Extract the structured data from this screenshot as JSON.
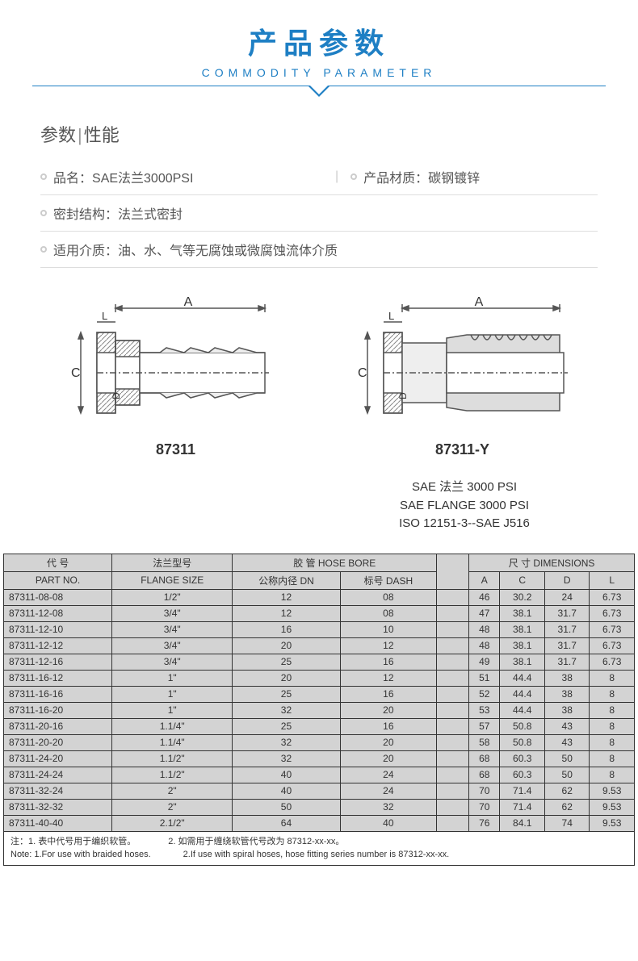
{
  "header": {
    "title_cn": "产品参数",
    "title_en": "COMMODITY PARAMETER",
    "accent_color": "#1e7fc4",
    "line_color": "#1e7fc4"
  },
  "section_title": {
    "left": "参数",
    "right": "性能"
  },
  "params": {
    "row1": {
      "label1": "品名：",
      "value1": "SAE法兰3000PSI",
      "label2": "产品材质：",
      "value2": "碳钢镀锌"
    },
    "row2": {
      "label": "密封结构：",
      "value": "法兰式密封"
    },
    "row3": {
      "label": "适用介质：",
      "value": " 油、水、气等无腐蚀或微腐蚀流体介质"
    }
  },
  "diagrams": {
    "dim_labels": {
      "A": "A",
      "L": "L",
      "C": "C",
      "D": "D"
    },
    "left_label": "87311",
    "right_label": "87311-Y",
    "stroke": "#555",
    "hatch": "#888"
  },
  "spec_text": {
    "line1": "SAE 法兰 3000 PSI",
    "line2": "SAE FLANGE 3000 PSI",
    "line3": "ISO 12151-3--SAE J516"
  },
  "table": {
    "header_bg": "#d3d3d3",
    "border_color": "#333",
    "headers_top": {
      "part_cn": "代 号",
      "flange_cn": "法兰型号",
      "hose_cn": "胶 管",
      "hose_en": "HOSE BORE",
      "dim_cn": "尺 寸",
      "dim_en": "DIMENSIONS"
    },
    "headers_sub": {
      "part_en": "PART NO.",
      "flange_en": "FLANGE  SIZE",
      "dn_cn": "公称内径",
      "dn_en": "DN",
      "dash_cn": "标号",
      "dash_en": "DASH",
      "A": "A",
      "C": "C",
      "D": "D",
      "L": "L"
    },
    "rows": [
      {
        "pn": "87311-08-08",
        "fs": "1/2\"",
        "dn": "12",
        "dash": "08",
        "a": "46",
        "c": "30.2",
        "d": "24",
        "l": "6.73"
      },
      {
        "pn": "87311-12-08",
        "fs": "3/4\"",
        "dn": "12",
        "dash": "08",
        "a": "47",
        "c": "38.1",
        "d": "31.7",
        "l": "6.73"
      },
      {
        "pn": "87311-12-10",
        "fs": "3/4\"",
        "dn": "16",
        "dash": "10",
        "a": "48",
        "c": "38.1",
        "d": "31.7",
        "l": "6.73"
      },
      {
        "pn": "87311-12-12",
        "fs": "3/4\"",
        "dn": "20",
        "dash": "12",
        "a": "48",
        "c": "38.1",
        "d": "31.7",
        "l": "6.73"
      },
      {
        "pn": "87311-12-16",
        "fs": "3/4\"",
        "dn": "25",
        "dash": "16",
        "a": "49",
        "c": "38.1",
        "d": "31.7",
        "l": "6.73"
      },
      {
        "pn": "87311-16-12",
        "fs": "1\"",
        "dn": "20",
        "dash": "12",
        "a": "51",
        "c": "44.4",
        "d": "38",
        "l": "8"
      },
      {
        "pn": "87311-16-16",
        "fs": "1\"",
        "dn": "25",
        "dash": "16",
        "a": "52",
        "c": "44.4",
        "d": "38",
        "l": "8"
      },
      {
        "pn": "87311-16-20",
        "fs": "1\"",
        "dn": "32",
        "dash": "20",
        "a": "53",
        "c": "44.4",
        "d": "38",
        "l": "8"
      },
      {
        "pn": "87311-20-16",
        "fs": "1.1/4\"",
        "dn": "25",
        "dash": "16",
        "a": "57",
        "c": "50.8",
        "d": "43",
        "l": "8"
      },
      {
        "pn": "87311-20-20",
        "fs": "1.1/4\"",
        "dn": "32",
        "dash": "20",
        "a": "58",
        "c": "50.8",
        "d": "43",
        "l": "8"
      },
      {
        "pn": "87311-24-20",
        "fs": "1.1/2\"",
        "dn": "32",
        "dash": "20",
        "a": "68",
        "c": "60.3",
        "d": "50",
        "l": "8"
      },
      {
        "pn": "87311-24-24",
        "fs": "1.1/2\"",
        "dn": "40",
        "dash": "24",
        "a": "68",
        "c": "60.3",
        "d": "50",
        "l": "8"
      },
      {
        "pn": "87311-32-24",
        "fs": "2\"",
        "dn": "40",
        "dash": "24",
        "a": "70",
        "c": "71.4",
        "d": "62",
        "l": "9.53"
      },
      {
        "pn": "87311-32-32",
        "fs": "2\"",
        "dn": "50",
        "dash": "32",
        "a": "70",
        "c": "71.4",
        "d": "62",
        "l": "9.53"
      },
      {
        "pn": "87311-40-40",
        "fs": "2.1/2\"",
        "dn": "64",
        "dash": "40",
        "a": "76",
        "c": "84.1",
        "d": "74",
        "l": "9.53"
      }
    ]
  },
  "footnote": {
    "cn1": "注：1. 表中代号用于编织软管。",
    "cn2": "2. 如需用于缠绕软管代号改为 87312-xx-xx。",
    "en1": "Note: 1.For use with braided hoses.",
    "en2": "2.If use with spiral hoses, hose fitting series number is 87312-xx-xx."
  }
}
